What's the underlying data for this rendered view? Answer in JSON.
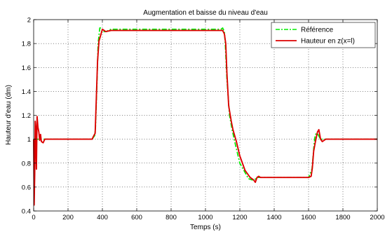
{
  "chart_data": {
    "type": "line",
    "title": "Augmentation et baisse du niveau d'eau",
    "xlabel": "Temps (s)",
    "ylabel": "Hauteur d'eau (dm)",
    "xlim": [
      0,
      2000
    ],
    "ylim": [
      0.4,
      2
    ],
    "xticks": [
      0,
      200,
      400,
      600,
      800,
      1000,
      1200,
      1400,
      1600,
      1800,
      2000
    ],
    "yticks": [
      0.4,
      0.6,
      0.8,
      1,
      1.2,
      1.4,
      1.6,
      1.8,
      2
    ],
    "xtick_labels": [
      "0",
      "200",
      "400",
      "600",
      "800",
      "1000",
      "1200",
      "1400",
      "1600",
      "1800",
      "2000"
    ],
    "ytick_labels": [
      "0.4",
      "0.6",
      "0.8",
      "1",
      "1.2",
      "1.4",
      "1.6",
      "1.8",
      "2"
    ],
    "grid": true,
    "legend_position": "top-right",
    "series": [
      {
        "name": "Référence",
        "color": "#00ee00",
        "style": "dash-dot",
        "x": [
          0,
          340,
          355,
          360,
          368,
          375,
          385,
          395,
          405,
          420,
          450,
          500,
          700,
          900,
          1090,
          1100,
          1110,
          1115,
          1125,
          1140,
          1155,
          1175,
          1200,
          1250,
          1270,
          1285,
          1300,
          1320,
          1400,
          1500,
          1600,
          1620,
          1632,
          1638,
          1645,
          1655,
          1670,
          1700,
          1800,
          2000
        ],
        "y": [
          1,
          1,
          1.03,
          1.1,
          1.45,
          1.8,
          1.93,
          1.93,
          1.9,
          1.9,
          1.92,
          1.92,
          1.92,
          1.92,
          1.92,
          1.93,
          1.9,
          1.8,
          1.5,
          1.2,
          1.08,
          0.95,
          0.8,
          0.67,
          0.66,
          0.66,
          0.68,
          0.68,
          0.68,
          0.68,
          0.68,
          0.75,
          0.95,
          1.03,
          1.05,
          1.04,
          1.0,
          1.0,
          1.0,
          1.0
        ]
      },
      {
        "name": "Hauteur en z(x=l)",
        "color": "#dd0000",
        "style": "solid",
        "x": [
          0,
          3,
          6,
          9,
          12,
          16,
          20,
          25,
          30,
          35,
          40,
          45,
          55,
          65,
          80,
          120,
          200,
          300,
          340,
          350,
          358,
          365,
          372,
          380,
          390,
          400,
          420,
          450,
          500,
          700,
          900,
          1100,
          1110,
          1118,
          1125,
          1135,
          1150,
          1160,
          1180,
          1200,
          1230,
          1260,
          1280,
          1290,
          1300,
          1310,
          1320,
          1330,
          1400,
          1500,
          1600,
          1615,
          1622,
          1630,
          1640,
          1652,
          1660,
          1670,
          1680,
          1700,
          1800,
          2000
        ],
        "y": [
          1,
          0.45,
          0.7,
          1.15,
          1.1,
          0.75,
          1.19,
          1.1,
          1.06,
          0.99,
          1.04,
          0.98,
          0.97,
          1.0,
          1.0,
          1.0,
          1.0,
          1.0,
          1.0,
          1.03,
          1.05,
          1.35,
          1.65,
          1.82,
          1.87,
          1.92,
          1.9,
          1.91,
          1.91,
          1.91,
          1.91,
          1.91,
          1.88,
          1.8,
          1.55,
          1.28,
          1.15,
          1.08,
          0.98,
          0.86,
          0.74,
          0.68,
          0.66,
          0.64,
          0.68,
          0.69,
          0.68,
          0.68,
          0.68,
          0.68,
          0.68,
          0.69,
          0.76,
          0.9,
          0.98,
          1.06,
          1.08,
          1.0,
          0.98,
          1.0,
          1.0,
          1.0
        ]
      }
    ]
  }
}
